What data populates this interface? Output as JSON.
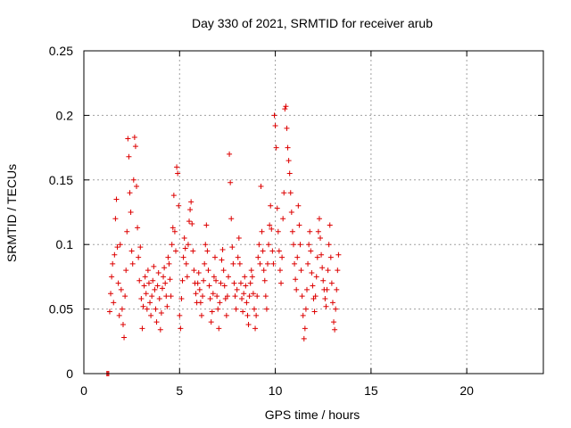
{
  "chart_data": {
    "type": "scatter",
    "title": "Day 330 of 2021, SRMTID for receiver arub",
    "xlabel": "GPS time / hours",
    "ylabel": "SRMTID / TECUs",
    "xlim": [
      0,
      24
    ],
    "ylim": [
      0,
      0.25
    ],
    "xticks": [
      0,
      5,
      10,
      15,
      20
    ],
    "yticks": [
      0,
      0.05,
      0.1,
      0.15,
      0.2,
      0.25
    ],
    "xtick_labels": [
      "0",
      "5",
      "10",
      "15",
      "20"
    ],
    "ytick_labels": [
      "0",
      "0.05",
      "0.1",
      "0.15",
      "0.2",
      "0.25"
    ],
    "grid": true,
    "marker": "+",
    "color": "#dd0000",
    "series": [
      {
        "name": "SRMTID",
        "points": [
          [
            1.2,
            0.0
          ],
          [
            1.25,
            0.0
          ],
          [
            1.3,
            0.0
          ],
          [
            1.35,
            0.048
          ],
          [
            1.4,
            0.062
          ],
          [
            1.45,
            0.075
          ],
          [
            1.5,
            0.085
          ],
          [
            1.55,
            0.055
          ],
          [
            1.6,
            0.092
          ],
          [
            1.65,
            0.12
          ],
          [
            1.7,
            0.135
          ],
          [
            1.75,
            0.098
          ],
          [
            1.8,
            0.07
          ],
          [
            1.85,
            0.045
          ],
          [
            1.9,
            0.1
          ],
          [
            1.95,
            0.065
          ],
          [
            2.0,
            0.05
          ],
          [
            2.05,
            0.038
          ],
          [
            2.1,
            0.028
          ],
          [
            2.15,
            0.06
          ],
          [
            2.2,
            0.08
          ],
          [
            2.25,
            0.11
          ],
          [
            2.3,
            0.182
          ],
          [
            2.35,
            0.168
          ],
          [
            2.4,
            0.14
          ],
          [
            2.45,
            0.125
          ],
          [
            2.5,
            0.095
          ],
          [
            2.55,
            0.085
          ],
          [
            2.6,
            0.15
          ],
          [
            2.65,
            0.183
          ],
          [
            2.7,
            0.176
          ],
          [
            2.75,
            0.145
          ],
          [
            2.8,
            0.113
          ],
          [
            2.85,
            0.09
          ],
          [
            2.9,
            0.072
          ],
          [
            2.95,
            0.098
          ],
          [
            3.0,
            0.058
          ],
          [
            3.05,
            0.035
          ],
          [
            3.1,
            0.052
          ],
          [
            3.15,
            0.068
          ],
          [
            3.2,
            0.075
          ],
          [
            3.25,
            0.062
          ],
          [
            3.3,
            0.05
          ],
          [
            3.35,
            0.08
          ],
          [
            3.4,
            0.07
          ],
          [
            3.45,
            0.055
          ],
          [
            3.5,
            0.045
          ],
          [
            3.55,
            0.06
          ],
          [
            3.6,
            0.072
          ],
          [
            3.65,
            0.083
          ],
          [
            3.7,
            0.065
          ],
          [
            3.75,
            0.05
          ],
          [
            3.8,
            0.04
          ],
          [
            3.85,
            0.068
          ],
          [
            3.9,
            0.078
          ],
          [
            3.95,
            0.058
          ],
          [
            4.0,
            0.034
          ],
          [
            4.05,
            0.047
          ],
          [
            4.1,
            0.066
          ],
          [
            4.15,
            0.075
          ],
          [
            4.2,
            0.082
          ],
          [
            4.25,
            0.07
          ],
          [
            4.3,
            0.06
          ],
          [
            4.35,
            0.052
          ],
          [
            4.4,
            0.09
          ],
          [
            4.45,
            0.085
          ],
          [
            4.5,
            0.073
          ],
          [
            4.55,
            0.06
          ],
          [
            4.6,
            0.1
          ],
          [
            4.65,
            0.113
          ],
          [
            4.7,
            0.138
          ],
          [
            4.75,
            0.11
          ],
          [
            4.8,
            0.095
          ],
          [
            4.85,
            0.16
          ],
          [
            4.9,
            0.155
          ],
          [
            4.95,
            0.13
          ],
          [
            5.0,
            0.045
          ],
          [
            5.05,
            0.035
          ],
          [
            5.1,
            0.058
          ],
          [
            5.15,
            0.072
          ],
          [
            5.2,
            0.09
          ],
          [
            5.25,
            0.105
          ],
          [
            5.3,
            0.097
          ],
          [
            5.35,
            0.085
          ],
          [
            5.4,
            0.075
          ],
          [
            5.45,
            0.1
          ],
          [
            5.5,
            0.118
          ],
          [
            5.55,
            0.127
          ],
          [
            5.6,
            0.133
          ],
          [
            5.65,
            0.116
          ],
          [
            5.7,
            0.095
          ],
          [
            5.75,
            0.08
          ],
          [
            5.8,
            0.07
          ],
          [
            5.85,
            0.062
          ],
          [
            5.9,
            0.055
          ],
          [
            5.95,
            0.07
          ],
          [
            6.0,
            0.078
          ],
          [
            6.05,
            0.065
          ],
          [
            6.1,
            0.055
          ],
          [
            6.15,
            0.045
          ],
          [
            6.2,
            0.06
          ],
          [
            6.25,
            0.072
          ],
          [
            6.3,
            0.085
          ],
          [
            6.35,
            0.1
          ],
          [
            6.4,
            0.115
          ],
          [
            6.45,
            0.095
          ],
          [
            6.5,
            0.08
          ],
          [
            6.55,
            0.068
          ],
          [
            6.6,
            0.058
          ],
          [
            6.65,
            0.04
          ],
          [
            6.7,
            0.048
          ],
          [
            6.75,
            0.062
          ],
          [
            6.8,
            0.075
          ],
          [
            6.85,
            0.09
          ],
          [
            6.9,
            0.072
          ],
          [
            6.95,
            0.06
          ],
          [
            7.0,
            0.05
          ],
          [
            7.05,
            0.035
          ],
          [
            7.1,
            0.055
          ],
          [
            7.15,
            0.07
          ],
          [
            7.2,
            0.088
          ],
          [
            7.25,
            0.096
          ],
          [
            7.3,
            0.08
          ],
          [
            7.35,
            0.068
          ],
          [
            7.4,
            0.058
          ],
          [
            7.45,
            0.045
          ],
          [
            7.5,
            0.06
          ],
          [
            7.55,
            0.075
          ],
          [
            7.6,
            0.17
          ],
          [
            7.65,
            0.148
          ],
          [
            7.7,
            0.12
          ],
          [
            7.75,
            0.098
          ],
          [
            7.8,
            0.085
          ],
          [
            7.85,
            0.07
          ],
          [
            7.9,
            0.06
          ],
          [
            7.95,
            0.05
          ],
          [
            8.0,
            0.065
          ],
          [
            8.05,
            0.09
          ],
          [
            8.1,
            0.105
          ],
          [
            8.15,
            0.085
          ],
          [
            8.2,
            0.07
          ],
          [
            8.25,
            0.058
          ],
          [
            8.3,
            0.048
          ],
          [
            8.35,
            0.062
          ],
          [
            8.4,
            0.075
          ],
          [
            8.45,
            0.068
          ],
          [
            8.5,
            0.055
          ],
          [
            8.55,
            0.045
          ],
          [
            8.6,
            0.038
          ],
          [
            8.65,
            0.06
          ],
          [
            8.7,
            0.07
          ],
          [
            8.75,
            0.08
          ],
          [
            8.8,
            0.075
          ],
          [
            8.85,
            0.062
          ],
          [
            8.9,
            0.05
          ],
          [
            8.95,
            0.035
          ],
          [
            9.0,
            0.045
          ],
          [
            9.05,
            0.06
          ],
          [
            9.1,
            0.09
          ],
          [
            9.15,
            0.1
          ],
          [
            9.2,
            0.085
          ],
          [
            9.25,
            0.145
          ],
          [
            9.3,
            0.11
          ],
          [
            9.35,
            0.095
          ],
          [
            9.4,
            0.08
          ],
          [
            9.45,
            0.072
          ],
          [
            9.5,
            0.06
          ],
          [
            9.55,
            0.05
          ],
          [
            9.6,
            0.085
          ],
          [
            9.65,
            0.1
          ],
          [
            9.7,
            0.115
          ],
          [
            9.75,
            0.13
          ],
          [
            9.8,
            0.112
          ],
          [
            9.85,
            0.095
          ],
          [
            9.9,
            0.085
          ],
          [
            9.95,
            0.2
          ],
          [
            10.0,
            0.192
          ],
          [
            10.05,
            0.175
          ],
          [
            10.1,
            0.128
          ],
          [
            10.15,
            0.11
          ],
          [
            10.2,
            0.095
          ],
          [
            10.25,
            0.08
          ],
          [
            10.3,
            0.07
          ],
          [
            10.35,
            0.09
          ],
          [
            10.4,
            0.12
          ],
          [
            10.45,
            0.14
          ],
          [
            10.5,
            0.205
          ],
          [
            10.55,
            0.207
          ],
          [
            10.6,
            0.19
          ],
          [
            10.65,
            0.175
          ],
          [
            10.7,
            0.165
          ],
          [
            10.75,
            0.155
          ],
          [
            10.8,
            0.14
          ],
          [
            10.85,
            0.125
          ],
          [
            10.9,
            0.11
          ],
          [
            10.95,
            0.1
          ],
          [
            11.0,
            0.085
          ],
          [
            11.05,
            0.073
          ],
          [
            11.1,
            0.065
          ],
          [
            11.15,
            0.09
          ],
          [
            11.2,
            0.13
          ],
          [
            11.25,
            0.115
          ],
          [
            11.3,
            0.1
          ],
          [
            11.35,
            0.08
          ],
          [
            11.4,
            0.06
          ],
          [
            11.45,
            0.045
          ],
          [
            11.5,
            0.027
          ],
          [
            11.55,
            0.035
          ],
          [
            11.6,
            0.05
          ],
          [
            11.65,
            0.065
          ],
          [
            11.7,
            0.085
          ],
          [
            11.75,
            0.1
          ],
          [
            11.8,
            0.11
          ],
          [
            11.85,
            0.095
          ],
          [
            11.9,
            0.078
          ],
          [
            11.95,
            0.068
          ],
          [
            12.0,
            0.058
          ],
          [
            12.05,
            0.048
          ],
          [
            12.1,
            0.06
          ],
          [
            12.15,
            0.075
          ],
          [
            12.2,
            0.09
          ],
          [
            12.25,
            0.11
          ],
          [
            12.3,
            0.12
          ],
          [
            12.35,
            0.105
          ],
          [
            12.4,
            0.092
          ],
          [
            12.45,
            0.082
          ],
          [
            12.5,
            0.072
          ],
          [
            12.55,
            0.065
          ],
          [
            12.6,
            0.058
          ],
          [
            12.65,
            0.052
          ],
          [
            12.7,
            0.065
          ],
          [
            12.75,
            0.08
          ],
          [
            12.8,
            0.1
          ],
          [
            12.85,
            0.115
          ],
          [
            12.9,
            0.09
          ],
          [
            12.95,
            0.07
          ],
          [
            13.0,
            0.055
          ],
          [
            13.05,
            0.04
          ],
          [
            13.1,
            0.034
          ],
          [
            13.15,
            0.05
          ],
          [
            13.2,
            0.065
          ],
          [
            13.25,
            0.08
          ],
          [
            13.3,
            0.092
          ]
        ]
      }
    ]
  }
}
